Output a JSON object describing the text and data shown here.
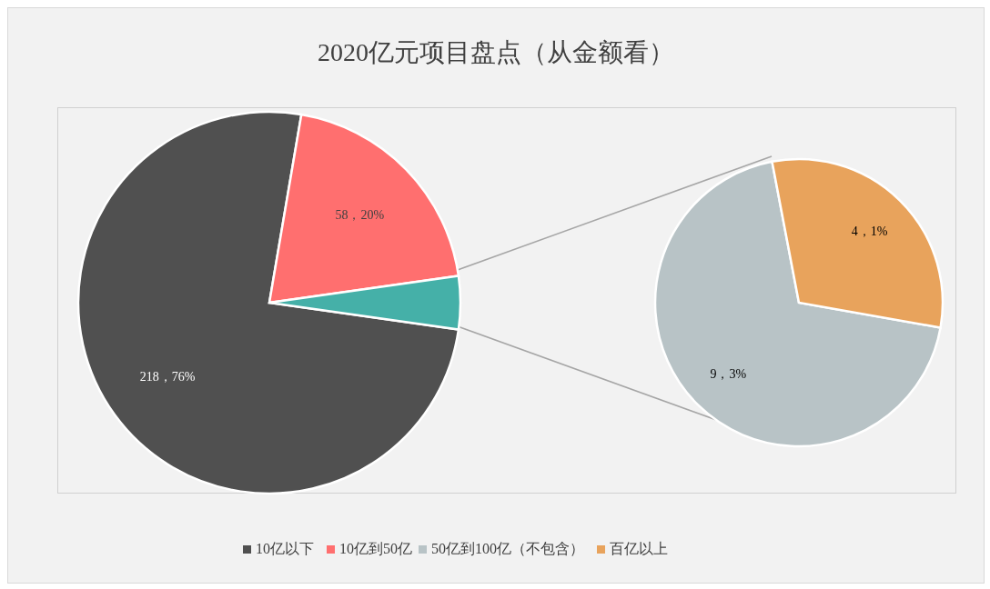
{
  "chart_data": [
    {
      "type": "pie",
      "title": "2020亿元项目盘点（从金额看）",
      "categories": [
        "10亿以下",
        "10亿到50亿",
        null
      ],
      "values": [
        218,
        58,
        13
      ],
      "colors": [
        "#505050",
        "#ff6f6f",
        "#45b0a8"
      ],
      "value_labels": [
        "218，76%",
        "58，20%",
        null
      ],
      "legend": "bottom"
    },
    {
      "type": "pie",
      "categories": [
        "50亿到100亿（不包含）",
        "百亿以上"
      ],
      "values": [
        9,
        4
      ],
      "colors": [
        "#b8c3c6",
        "#e8a35c"
      ],
      "value_labels": [
        "9，3%",
        "4，1%"
      ],
      "legend": "bottom"
    }
  ]
}
